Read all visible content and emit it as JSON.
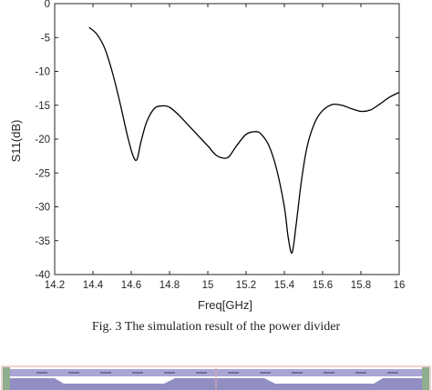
{
  "chart_data": {
    "type": "line",
    "title": "",
    "xlabel": "Freq[GHz]",
    "ylabel": "S11(dB)",
    "xlim": [
      14.2,
      16
    ],
    "ylim": [
      -40,
      0
    ],
    "xticks": [
      "14.2",
      "14.4",
      "14.6",
      "14.8",
      "15",
      "15.2",
      "15.4",
      "15.6",
      "15.8",
      "16"
    ],
    "yticks": [
      "0",
      "-5",
      "-10",
      "-15",
      "-20",
      "-25",
      "-30",
      "-35",
      "-40"
    ],
    "grid": false,
    "series": [
      {
        "x": [
          14.38,
          14.42,
          14.46,
          14.5,
          14.54,
          14.58,
          14.61,
          14.63,
          14.65,
          14.68,
          14.72,
          14.76,
          14.8,
          14.85,
          14.9,
          14.95,
          15.0,
          15.04,
          15.08,
          15.11,
          15.15,
          15.2,
          15.25,
          15.28,
          15.32,
          15.36,
          15.4,
          15.42,
          15.44,
          15.46,
          15.49,
          15.52,
          15.56,
          15.6,
          15.65,
          15.7,
          15.75,
          15.8,
          15.85,
          15.9,
          15.95,
          16.0
        ],
        "y": [
          -3.5,
          -4.5,
          -6.5,
          -10.0,
          -14.5,
          -19.5,
          -22.5,
          -23.0,
          -20.5,
          -17.5,
          -15.5,
          -15.1,
          -15.3,
          -16.5,
          -18.0,
          -19.5,
          -21.0,
          -22.3,
          -22.8,
          -22.6,
          -21.0,
          -19.3,
          -18.9,
          -19.3,
          -21.0,
          -24.5,
          -30.0,
          -34.5,
          -36.8,
          -33.0,
          -26.0,
          -21.0,
          -17.5,
          -15.8,
          -14.9,
          -15.0,
          -15.5,
          -15.9,
          -15.7,
          -14.8,
          -13.8,
          -13.1
        ]
      }
    ]
  },
  "caption": "Fig. 3 The simulation result of the power divider",
  "colors": {
    "line": "#000000",
    "axes": "#262626",
    "layout_substrate": "#9b95cc",
    "layout_trace": "#7e7ab8",
    "layout_pad": "#8fae8f",
    "layout_outline": "#e0a7a7"
  }
}
